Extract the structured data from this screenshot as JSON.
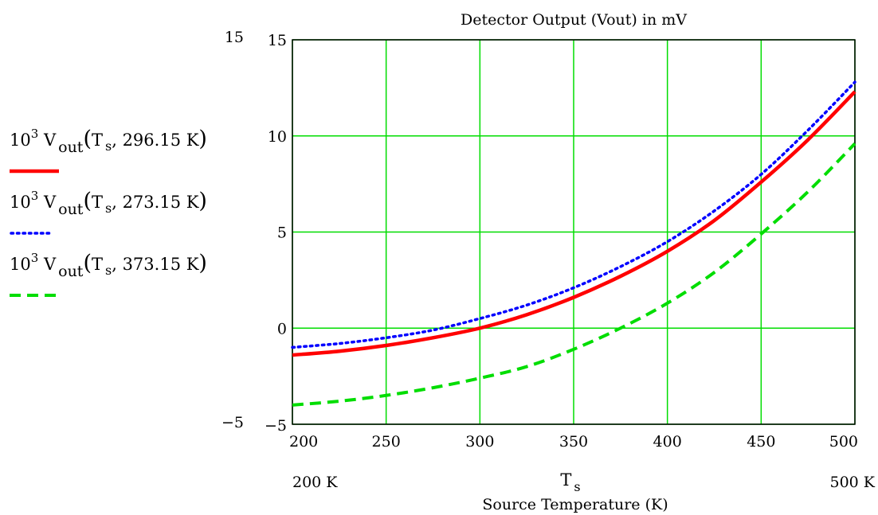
{
  "chart_data": {
    "type": "line",
    "title": "Detector Output (Vout) in mV",
    "xlabel": "Source Temperature (K)",
    "x_variable": {
      "base": "T",
      "sub": "s"
    },
    "x_range_labels": [
      "200 K",
      "500 K"
    ],
    "y_range_labels": [
      "15",
      "−5"
    ],
    "xlim": [
      200,
      500
    ],
    "ylim": [
      -5,
      15
    ],
    "xticks": [
      200,
      250,
      300,
      350,
      400,
      450,
      500
    ],
    "yticks": [
      -5,
      0,
      5,
      10,
      15
    ],
    "ytick_labels": [
      "−5",
      "0",
      "5",
      "10",
      "15"
    ],
    "grid": true,
    "grid_color": "#00dd00",
    "legend_position": "left",
    "series": [
      {
        "name": "10^3 V_out(T_s, 296.15 K)",
        "legend": {
          "coef_base": "10",
          "coef_exp": "3",
          "fn": "V",
          "fn_sub": "out",
          "arg_base": "T",
          "arg_sub": "s",
          "arg_rest": ", 296.15 K)"
        },
        "color": "#ff0000",
        "style": "solid",
        "x": [
          200,
          225,
          250,
          275,
          300,
          325,
          350,
          375,
          400,
          425,
          450,
          475,
          500
        ],
        "values": [
          -1.4,
          -1.2,
          -0.9,
          -0.5,
          0.0,
          0.7,
          1.6,
          2.7,
          4.0,
          5.6,
          7.6,
          9.8,
          12.3
        ]
      },
      {
        "name": "10^3 V_out(T_s, 273.15 K)",
        "legend": {
          "coef_base": "10",
          "coef_exp": "3",
          "fn": "V",
          "fn_sub": "out",
          "arg_base": "T",
          "arg_sub": "s",
          "arg_rest": ", 273.15 K)"
        },
        "color": "#0000ff",
        "style": "dotted",
        "x": [
          200,
          225,
          250,
          275,
          300,
          325,
          350,
          375,
          400,
          425,
          450,
          475,
          500
        ],
        "values": [
          -1.0,
          -0.8,
          -0.5,
          -0.1,
          0.5,
          1.2,
          2.1,
          3.2,
          4.5,
          6.1,
          8.0,
          10.3,
          12.8
        ]
      },
      {
        "name": "10^3 V_out(T_s, 373.15 K)",
        "legend": {
          "coef_base": "10",
          "coef_exp": "3",
          "fn": "V",
          "fn_sub": "out",
          "arg_base": "T",
          "arg_sub": "s",
          "arg_rest": ", 373.15 K)"
        },
        "color": "#00dd00",
        "style": "dashed",
        "x": [
          200,
          225,
          250,
          275,
          300,
          325,
          350,
          375,
          400,
          425,
          450,
          475,
          500
        ],
        "values": [
          -4.0,
          -3.8,
          -3.5,
          -3.1,
          -2.6,
          -2.0,
          -1.1,
          0.0,
          1.3,
          2.9,
          4.9,
          7.1,
          9.6
        ]
      }
    ]
  }
}
